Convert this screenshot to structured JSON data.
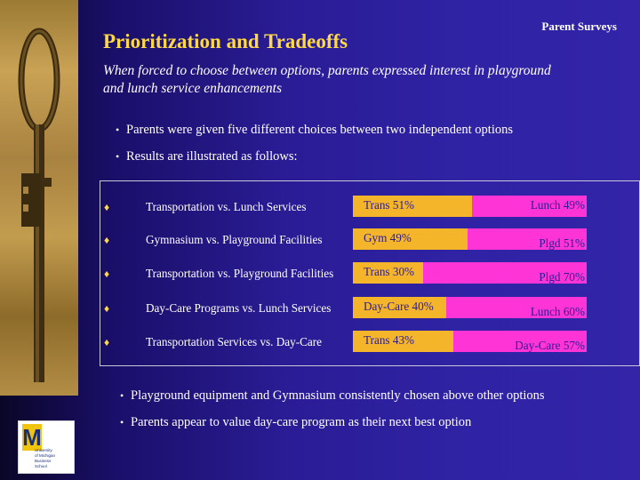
{
  "slide": {
    "title": "Prioritization and Tradeoffs",
    "section_label": "Parent Surveys",
    "subtitle": "When forced to choose between options, parents expressed interest in playground and lunch service enhancements"
  },
  "intro_bullets": [
    "Parents were given five different choices between two independent options",
    "Results are illustrated as follows:"
  ],
  "comparisons": [
    {
      "label": "Transportation vs. Lunch Services",
      "a_label": "Trans 51%",
      "a_pct": 51,
      "b_label": "Lunch 49%",
      "b_pct": 49
    },
    {
      "label": "Gymnasium vs. Playground Facilities",
      "a_label": "Gym 49%",
      "a_pct": 49,
      "b_label": "Plgd 51%",
      "b_pct": 51
    },
    {
      "label": "Transportation vs. Playground Facilities",
      "a_label": "Trans 30%",
      "a_pct": 30,
      "b_label": "Plgd 70%",
      "b_pct": 70
    },
    {
      "label": "Day-Care Programs vs. Lunch Services",
      "a_label": "Day-Care 40%",
      "a_pct": 40,
      "b_label": "Lunch 60%",
      "b_pct": 60
    },
    {
      "label": "Transportation Services vs. Day-Care",
      "a_label": "Trans 43%",
      "a_pct": 43,
      "b_label": "Day-Care 57%",
      "b_pct": 57
    }
  ],
  "conclusion_bullets": [
    "Playground equipment and Gymnasium consistently chosen above other options",
    "Parents appear to value day-care program as their next best option"
  ],
  "logo": {
    "letter": "M",
    "text_lines": [
      "University",
      "of Michigan",
      "Business",
      "School"
    ]
  },
  "colors": {
    "title": "#ffd845",
    "bar_a": "#f5b52a",
    "bar_b": "#ff34d6",
    "background": "#2a1c95"
  }
}
